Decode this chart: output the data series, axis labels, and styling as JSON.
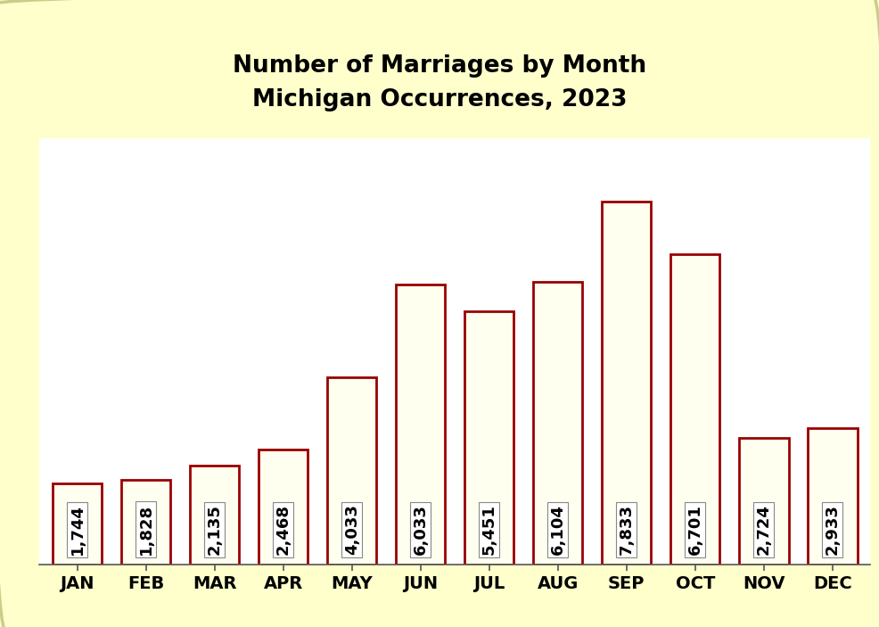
{
  "title_line1": "Number of Marriages by Month",
  "title_line2": "Michigan Occurrences, 2023",
  "categories": [
    "JAN",
    "FEB",
    "MAR",
    "APR",
    "MAY",
    "JUN",
    "JUL",
    "AUG",
    "SEP",
    "OCT",
    "NOV",
    "DEC"
  ],
  "values": [
    1744,
    1828,
    2135,
    2468,
    4033,
    6033,
    5451,
    6104,
    7833,
    6701,
    2724,
    2933
  ],
  "labels": [
    "1,744",
    "1,828",
    "2,135",
    "2,468",
    "4,033",
    "6,033",
    "5,451",
    "6,104",
    "7,833",
    "6,701",
    "2,724",
    "2,933"
  ],
  "bar_face_color": "#FFFFF0",
  "bar_edge_color": "#990000",
  "background_outer": "#FFFFCC",
  "background_inner": "#FFFFFF",
  "title_color": "#000000",
  "title_fontsize": 19,
  "tick_fontsize": 14,
  "label_fontsize": 13,
  "ylim": [
    0,
    9200
  ]
}
